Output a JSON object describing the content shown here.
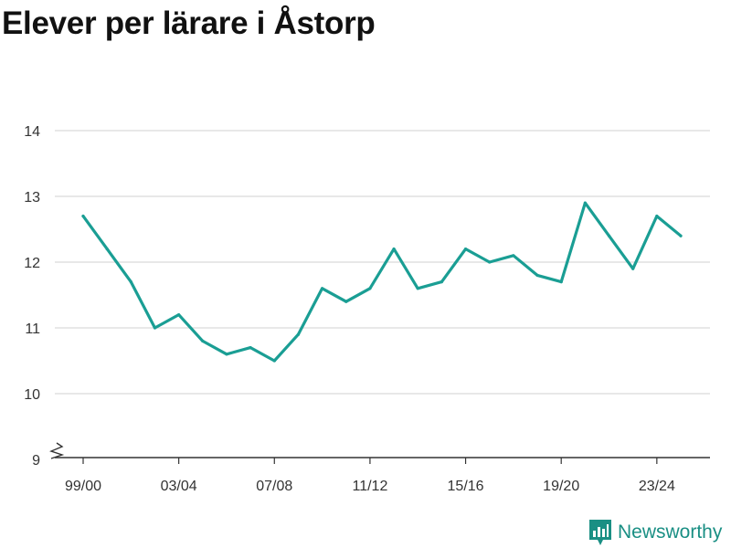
{
  "chart_data": {
    "type": "line",
    "title": "Elever per lärare i Åstorp",
    "xlabel": "",
    "ylabel": "",
    "ylim": [
      9,
      14
    ],
    "y_ticks": [
      9,
      10,
      11,
      12,
      13,
      14
    ],
    "y_axis_break": true,
    "grid": true,
    "categories": [
      "99/00",
      "00/01",
      "01/02",
      "02/03",
      "03/04",
      "04/05",
      "05/06",
      "06/07",
      "07/08",
      "08/09",
      "09/10",
      "10/11",
      "11/12",
      "12/13",
      "13/14",
      "14/15",
      "15/16",
      "16/17",
      "17/18",
      "18/19",
      "19/20",
      "20/21",
      "21/22",
      "22/23",
      "23/24",
      "24/25"
    ],
    "x_tick_labels": [
      "99/00",
      "03/04",
      "07/08",
      "11/12",
      "15/16",
      "19/20",
      "23/24"
    ],
    "series": [
      {
        "color": "#1a9e94",
        "values": [
          12.7,
          12.2,
          11.7,
          11.0,
          11.2,
          10.8,
          10.6,
          10.7,
          10.5,
          10.9,
          11.6,
          11.4,
          11.6,
          12.2,
          11.6,
          11.7,
          12.2,
          12.0,
          12.1,
          11.8,
          11.7,
          12.9,
          12.4,
          11.9,
          12.7,
          12.4
        ]
      }
    ]
  },
  "branding": {
    "name": "Newsworthy",
    "icon": "newsworthy-logo-icon",
    "color": "#1a8f84"
  }
}
